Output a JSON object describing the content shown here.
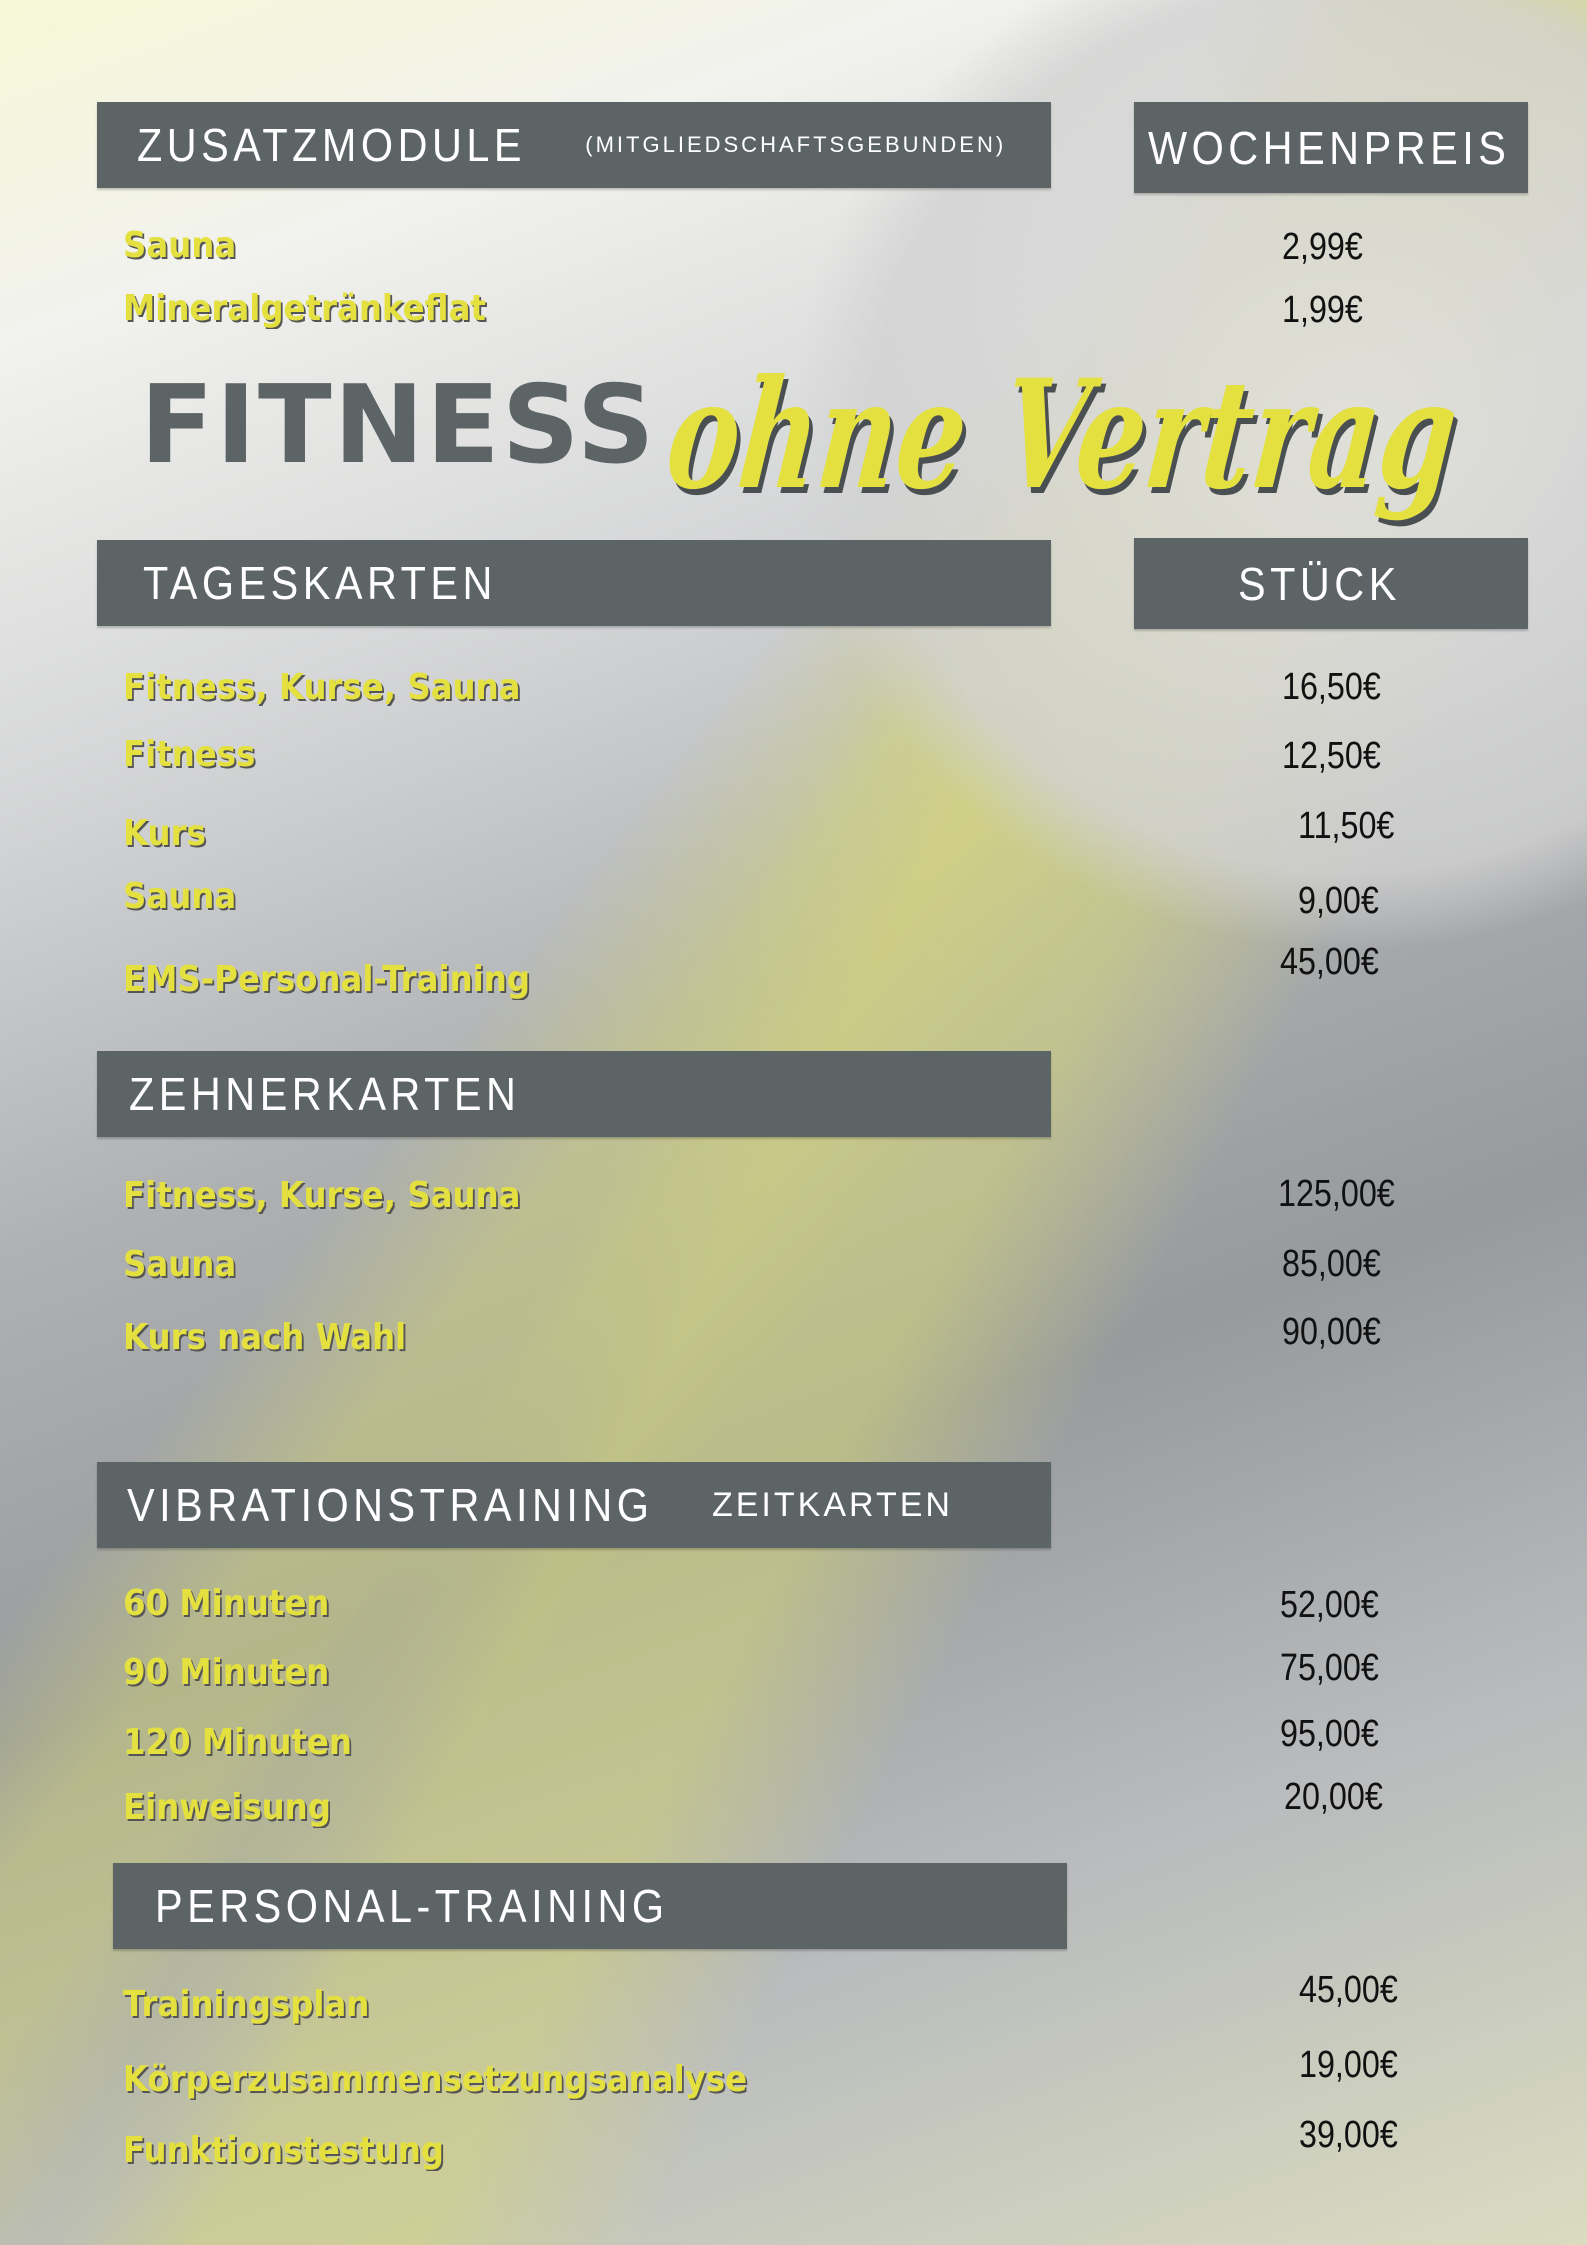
{
  "zusatzmodule": {
    "title": "ZUSATZMODULE",
    "subtitle": "(MITGLIEDSCHAFTSGEBUNDEN)",
    "price_header": "WOCHENPREIS",
    "items": [
      {
        "label": "Sauna",
        "price": "2,99€"
      },
      {
        "label": "Mineralgetränkeflat",
        "price": "1,99€"
      }
    ]
  },
  "headline": {
    "main": "FITNESS",
    "script": "ohne Vertrag"
  },
  "tageskarten": {
    "title": "TAGESKARTEN",
    "price_header": "STÜCK",
    "items": [
      {
        "label": "Fitness, Kurse, Sauna",
        "price": "16,50€"
      },
      {
        "label": "Fitness",
        "price": "12,50€"
      },
      {
        "label": "Kurs",
        "price": "11,50€"
      },
      {
        "label": "Sauna",
        "price": "9,00€"
      },
      {
        "label": "EMS-Personal-Training",
        "price": "45,00€"
      }
    ]
  },
  "zehnerkarten": {
    "title": "ZEHNERKARTEN",
    "items": [
      {
        "label": "Fitness, Kurse, Sauna",
        "price": "125,00€"
      },
      {
        "label": "Sauna",
        "price": "85,00€"
      },
      {
        "label": "Kurs nach Wahl",
        "price": "90,00€"
      }
    ]
  },
  "vibration": {
    "title": "VIBRATIONSTRAINING",
    "subtitle": "ZEITKARTEN",
    "items": [
      {
        "label": "60 Minuten",
        "price": "52,00€"
      },
      {
        "label": "90 Minuten",
        "price": "75,00€"
      },
      {
        "label": "120 Minuten",
        "price": "95,00€"
      },
      {
        "label": "Einweisung",
        "price": "20,00€"
      }
    ]
  },
  "personal": {
    "title": "PERSONAL-TRAINING",
    "items": [
      {
        "label": "Trainingsplan",
        "price": "45,00€"
      },
      {
        "label": "Körperzusammensetzungsanalyse",
        "price": "19,00€"
      },
      {
        "label": "Funktionstestung",
        "price": "39,00€"
      }
    ]
  },
  "colors": {
    "bar": "#5d6466",
    "accent": "#e4e040",
    "text": "#111111"
  }
}
